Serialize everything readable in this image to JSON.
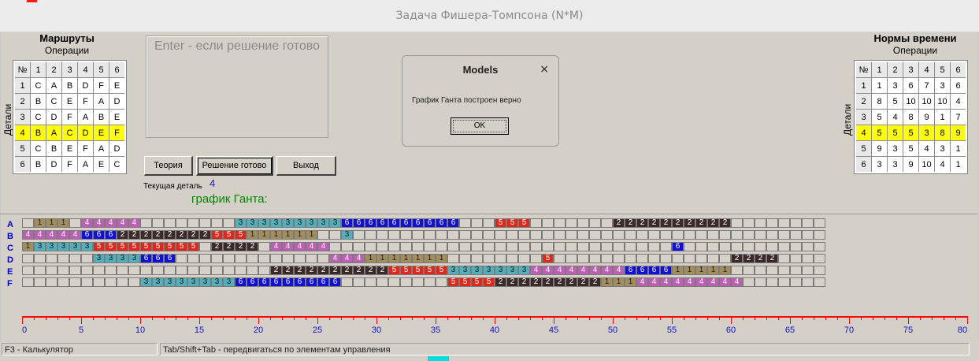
{
  "window": {
    "title": "Задача Фишера-Томпсона (N*M)"
  },
  "routes": {
    "title": "Маршруты",
    "subtitle": "Операции",
    "side_label": "Детали",
    "header": [
      "№",
      "1",
      "2",
      "3",
      "4",
      "5",
      "6"
    ],
    "rows": [
      [
        "1",
        "C",
        "A",
        "B",
        "D",
        "F",
        "E"
      ],
      [
        "2",
        "B",
        "C",
        "E",
        "F",
        "A",
        "D"
      ],
      [
        "3",
        "C",
        "D",
        "F",
        "A",
        "B",
        "E"
      ],
      [
        "4",
        "B",
        "A",
        "C",
        "D",
        "E",
        "F"
      ],
      [
        "5",
        "C",
        "B",
        "E",
        "F",
        "A",
        "D"
      ],
      [
        "6",
        "B",
        "D",
        "F",
        "A",
        "E",
        "C"
      ]
    ],
    "highlight_row": 3
  },
  "times": {
    "title": "Нормы времени",
    "subtitle": "Операции",
    "side_label": "Детали",
    "header": [
      "№",
      "1",
      "2",
      "3",
      "4",
      "5",
      "6"
    ],
    "rows": [
      [
        "1",
        "1",
        "3",
        "6",
        "7",
        "3",
        "6"
      ],
      [
        "2",
        "8",
        "5",
        "10",
        "10",
        "10",
        "4"
      ],
      [
        "3",
        "5",
        "4",
        "8",
        "9",
        "1",
        "7"
      ],
      [
        "4",
        "5",
        "5",
        "5",
        "3",
        "8",
        "9"
      ],
      [
        "5",
        "9",
        "3",
        "5",
        "4",
        "3",
        "1"
      ],
      [
        "6",
        "3",
        "3",
        "9",
        "10",
        "4",
        "1"
      ]
    ],
    "highlight_row": 3
  },
  "hint": {
    "text": "Enter - если решение готово"
  },
  "buttons": {
    "theory": "Теория",
    "solution_ready": "Решение готово",
    "exit": "Выход"
  },
  "current_detail": {
    "label": "Текущая деталь",
    "value": "4"
  },
  "gantt": {
    "title": "график Ганта:",
    "machines": [
      "A",
      "B",
      "C",
      "D",
      "E",
      "F"
    ],
    "cells_per_row": 68,
    "colors": {
      "1": "#a28d5d",
      "2": "#3c2a2a",
      "3": "#52b0bc",
      "4": "#bd5fb3",
      "5": "#e0281a",
      "6": "#1010d8",
      "empty": "#d6d2ca"
    },
    "rows": [
      [
        {
          "job": "1",
          "start": 1,
          "len": 3
        },
        {
          "job": "4",
          "start": 5,
          "len": 5
        },
        {
          "job": "3",
          "start": 18,
          "len": 9
        },
        {
          "job": "6",
          "start": 27,
          "len": 10
        },
        {
          "job": "5",
          "start": 40,
          "len": 3
        },
        {
          "job": "2",
          "start": 50,
          "len": 10
        }
      ],
      [
        {
          "job": "4",
          "start": 0,
          "len": 5
        },
        {
          "job": "6",
          "start": 5,
          "len": 3
        },
        {
          "job": "2",
          "start": 8,
          "len": 8
        },
        {
          "job": "5",
          "start": 16,
          "len": 3
        },
        {
          "job": "1",
          "start": 19,
          "len": 6
        },
        {
          "job": "3",
          "start": 27,
          "len": 1
        }
      ],
      [
        {
          "job": "1",
          "start": 0,
          "len": 1
        },
        {
          "job": "3",
          "start": 1,
          "len": 5
        },
        {
          "job": "5",
          "start": 6,
          "len": 9
        },
        {
          "job": "2",
          "start": 16,
          "len": 4
        },
        {
          "job": "4",
          "start": 21,
          "len": 5
        },
        {
          "job": "6",
          "start": 55,
          "len": 1
        }
      ],
      [
        {
          "job": "3",
          "start": 6,
          "len": 4
        },
        {
          "job": "6",
          "start": 10,
          "len": 3
        },
        {
          "job": "4",
          "start": 26,
          "len": 3
        },
        {
          "job": "1",
          "start": 29,
          "len": 7
        },
        {
          "job": "5",
          "start": 44,
          "len": 1
        },
        {
          "job": "2",
          "start": 60,
          "len": 4
        }
      ],
      [
        {
          "job": "2",
          "start": 21,
          "len": 10
        },
        {
          "job": "5",
          "start": 31,
          "len": 5
        },
        {
          "job": "3",
          "start": 36,
          "len": 7
        },
        {
          "job": "4",
          "start": 43,
          "len": 8
        },
        {
          "job": "6",
          "start": 51,
          "len": 4
        },
        {
          "job": "1",
          "start": 55,
          "len": 5
        }
      ],
      [
        {
          "job": "3",
          "start": 10,
          "len": 8
        },
        {
          "job": "6",
          "start": 18,
          "len": 9
        },
        {
          "job": "5",
          "start": 36,
          "len": 4
        },
        {
          "job": "2",
          "start": 40,
          "len": 9
        },
        {
          "job": "1",
          "start": 49,
          "len": 3
        },
        {
          "job": "4",
          "start": 52,
          "len": 9
        }
      ]
    ]
  },
  "axis": {
    "min": 0,
    "max": 80,
    "labels": [
      "0",
      "5",
      "10",
      "15",
      "20",
      "25",
      "30",
      "35",
      "40",
      "45",
      "50",
      "55",
      "60",
      "65",
      "70",
      "75",
      "80"
    ]
  },
  "dialog": {
    "title": "Models",
    "close": "×",
    "message": "График Ганта построен верно",
    "ok": "OK"
  },
  "status": {
    "left": "F3 - Калькулятор",
    "right": "Tab/Shift+Tab - передвигаться по элементам управления"
  }
}
